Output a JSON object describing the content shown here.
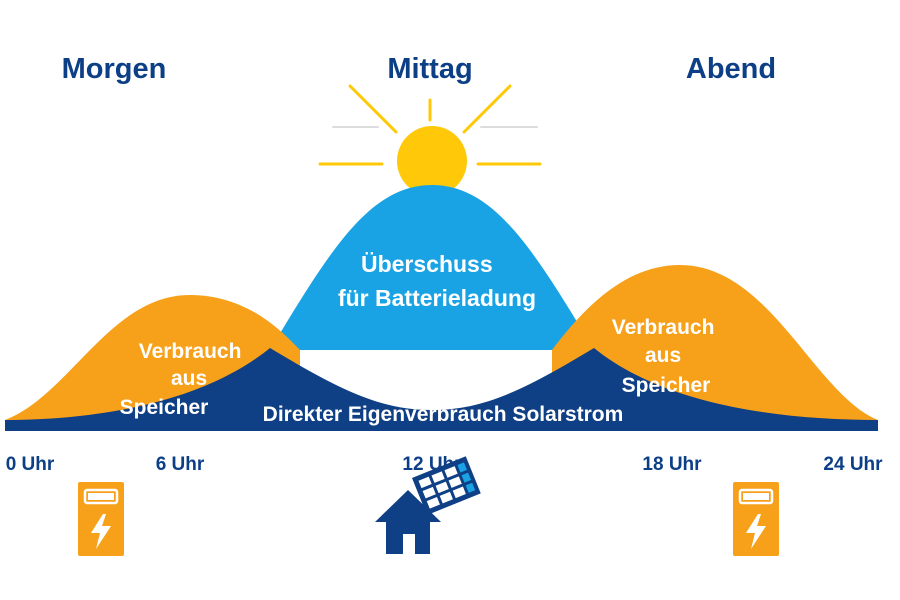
{
  "colors": {
    "navy": "#0f3f84",
    "sky": "#1aa3e4",
    "orange": "#f7a11a",
    "sun": "#ffc90a",
    "text_light": "#ffffff",
    "heading": "#0d3f86"
  },
  "periods": {
    "morning": "Morgen",
    "noon": "Mittag",
    "evening": "Abend"
  },
  "areas": {
    "surplus": [
      "Überschuss",
      "für Batterieladung"
    ],
    "storage_left": [
      "Verbrauch",
      "aus",
      "Speicher"
    ],
    "storage_right": [
      "Verbrauch",
      "aus",
      "Speicher"
    ],
    "direct": "Direkter Eigenverbrauch Solarstrom"
  },
  "axis": {
    "ticks": [
      "0 Uhr",
      "6 Uhr",
      "12 Uhr",
      "18 Uhr",
      "24 Uhr"
    ]
  },
  "icons": {
    "battery_left": "battery-charging-icon",
    "house": "solar-house-icon",
    "battery_right": "battery-charging-icon",
    "sun": "sun-icon"
  }
}
